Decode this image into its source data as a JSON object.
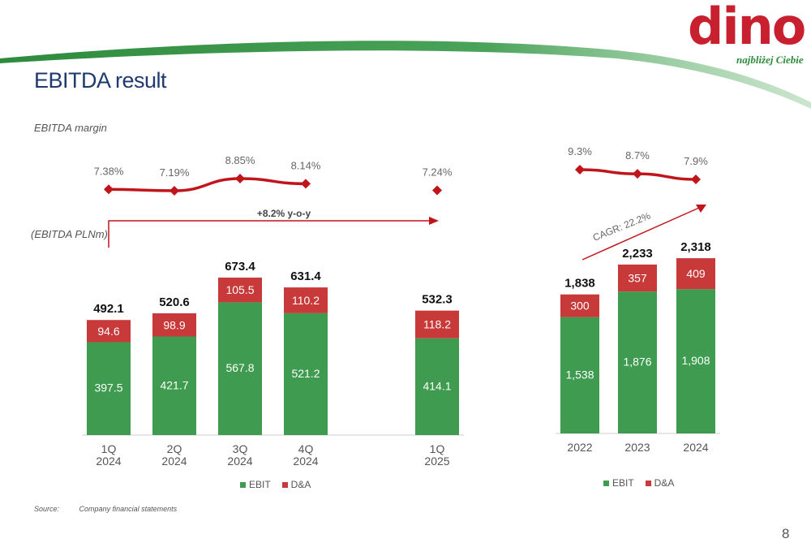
{
  "page": {
    "title": "EBITDA result",
    "margin_label": "EBITDA margin",
    "unit_label": "(EBITDA PLNm)",
    "source_label": "Source:",
    "source_text": "Company financial statements",
    "page_number": "8"
  },
  "logo": {
    "text": "dino",
    "tagline": "najbliżej Ciebie"
  },
  "colors": {
    "ebit": "#3e9b4f",
    "da": "#c8393a",
    "margin_line": "#c0151b",
    "accent_green": "#2e8b3d",
    "title": "#1f3a6e"
  },
  "legend": {
    "ebit": "EBIT",
    "da": "D&A"
  },
  "chart_data": [
    {
      "type": "bar",
      "stacked": true,
      "categories": [
        "1Q\n2024",
        "2Q\n2024",
        "3Q\n2024",
        "4Q\n2024",
        "1Q\n2025"
      ],
      "series": [
        {
          "name": "EBIT",
          "values": [
            397.5,
            421.7,
            567.8,
            521.2,
            414.1
          ]
        },
        {
          "name": "D&A",
          "values": [
            94.6,
            98.9,
            105.5,
            110.2,
            118.2
          ]
        }
      ],
      "totals": [
        "492.1",
        "520.6",
        "673.4",
        "631.4",
        "532.3"
      ],
      "value_labels": {
        "ebit": [
          "397.5",
          "421.7",
          "567.8",
          "521.2",
          "414.1"
        ],
        "da": [
          "94.6",
          "98.9",
          "105.5",
          "110.2",
          "118.2"
        ]
      },
      "margin": {
        "values": [
          7.38,
          7.19,
          8.85,
          8.14,
          7.24
        ],
        "labels": [
          "7.38%",
          "7.19%",
          "8.85%",
          "8.14%",
          "7.24%"
        ],
        "connected": [
          true,
          true,
          true,
          true,
          false
        ]
      },
      "annotation": "+8.2% y-o-y",
      "ylim": [
        0,
        700
      ],
      "legend_position": "bottom"
    },
    {
      "type": "bar",
      "stacked": true,
      "categories": [
        "2022",
        "2023",
        "2024"
      ],
      "series": [
        {
          "name": "EBIT",
          "values": [
            1538,
            1876,
            1908
          ]
        },
        {
          "name": "D&A",
          "values": [
            300,
            357,
            409
          ]
        }
      ],
      "totals": [
        "1,838",
        "2,233",
        "2,318"
      ],
      "value_labels": {
        "ebit": [
          "1,538",
          "1,876",
          "1,908"
        ],
        "da": [
          "300",
          "357",
          "409"
        ]
      },
      "margin": {
        "values": [
          9.3,
          8.7,
          7.9
        ],
        "labels": [
          "9.3%",
          "8.7%",
          "7.9%"
        ],
        "connected": [
          true,
          true,
          true
        ]
      },
      "annotation": "CAGR: 22.2%",
      "ylim": [
        0,
        2400
      ],
      "legend_position": "bottom"
    }
  ]
}
